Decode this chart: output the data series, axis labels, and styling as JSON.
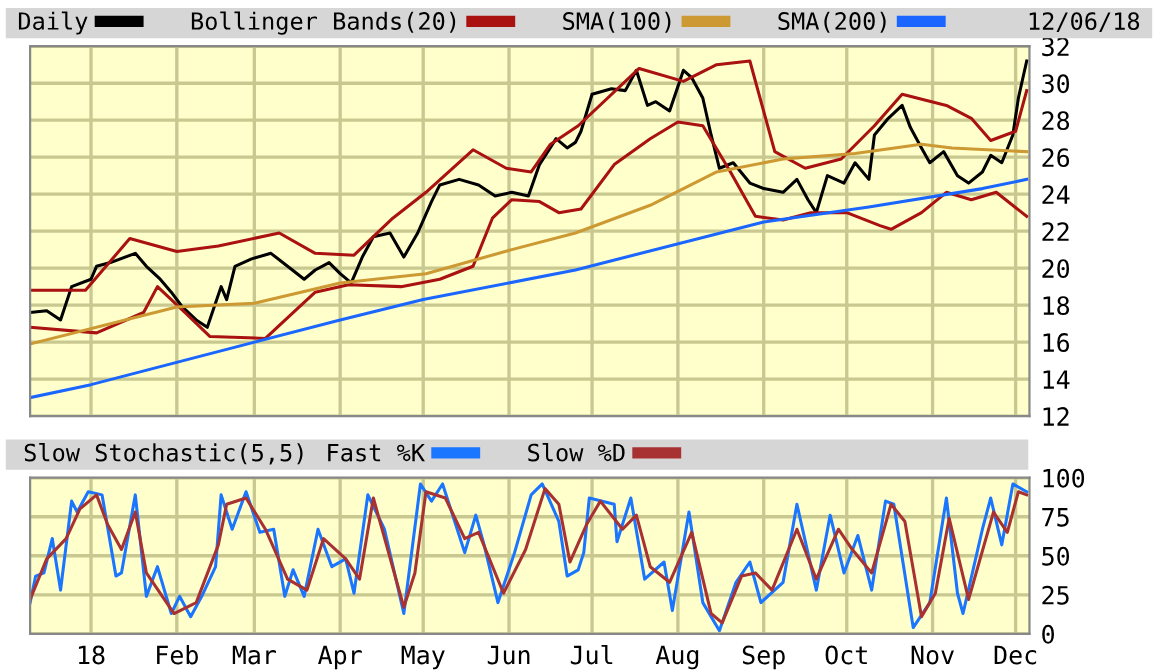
{
  "chart_data": [
    {
      "type": "line",
      "legend": "top left",
      "grid": true,
      "tick_labels": "y",
      "annotations": [
        "12/06/18"
      ],
      "xlim": [
        "2017-12-10",
        "2018-12-06"
      ],
      "ylim": [
        12,
        32
      ],
      "yticks": [
        12,
        14,
        16,
        18,
        20,
        22,
        24,
        26,
        28,
        30,
        32
      ],
      "xticks": [
        {
          "value": "2018-01-01",
          "label": null
        },
        {
          "value": "2018-02-01",
          "label": null
        },
        {
          "value": "2018-03-01",
          "label": null
        },
        {
          "value": "2018-04-01",
          "label": null
        },
        {
          "value": "2018-05-01",
          "label": null
        },
        {
          "value": "2018-06-01",
          "label": null
        },
        {
          "value": "2018-07-01",
          "label": null
        },
        {
          "value": "2018-08-01",
          "label": null
        },
        {
          "value": "2018-09-01",
          "label": null
        },
        {
          "value": "2018-10-01",
          "label": null
        },
        {
          "value": "2018-11-01",
          "label": null
        },
        {
          "value": "2018-12-01",
          "label": null
        }
      ],
      "series": [
        {
          "name": "Daily",
          "color": "#000000",
          "x": [
            "2017-12-10",
            "2017-12-16",
            "2017-12-21",
            "2017-12-25",
            "2018-01-01",
            "2018-01-03",
            "2018-01-08",
            "2018-01-17",
            "2018-01-21",
            "2018-01-26",
            "2018-01-30",
            "2018-02-03",
            "2018-02-08",
            "2018-02-12",
            "2018-02-17",
            "2018-02-19",
            "2018-02-22",
            "2018-02-28",
            "2018-03-07",
            "2018-03-13",
            "2018-03-19",
            "2018-03-23",
            "2018-03-28",
            "2018-04-01",
            "2018-04-05",
            "2018-04-09",
            "2018-04-13",
            "2018-04-19",
            "2018-04-24",
            "2018-04-29",
            "2018-05-04",
            "2018-05-07",
            "2018-05-14",
            "2018-05-21",
            "2018-05-27",
            "2018-06-02",
            "2018-06-08",
            "2018-06-12",
            "2018-06-18",
            "2018-06-22",
            "2018-06-25",
            "2018-06-27",
            "2018-07-01",
            "2018-07-08",
            "2018-07-13",
            "2018-07-17",
            "2018-07-21",
            "2018-07-24",
            "2018-07-29",
            "2018-08-03",
            "2018-08-06",
            "2018-08-10",
            "2018-08-13",
            "2018-08-16",
            "2018-08-21",
            "2018-08-27",
            "2018-09-01",
            "2018-09-08",
            "2018-09-13",
            "2018-09-17",
            "2018-09-20",
            "2018-09-24",
            "2018-09-30",
            "2018-10-04",
            "2018-10-09",
            "2018-10-11",
            "2018-10-16",
            "2018-10-21",
            "2018-10-24",
            "2018-10-28",
            "2018-10-31",
            "2018-11-05",
            "2018-11-10",
            "2018-11-14",
            "2018-11-19",
            "2018-11-22",
            "2018-11-26",
            "2018-11-30",
            "2018-12-02",
            "2018-12-05"
          ],
          "values": [
            17.6,
            17.7,
            17.2,
            19.0,
            19.4,
            20.1,
            20.3,
            20.8,
            20.1,
            19.4,
            18.7,
            17.9,
            17.2,
            16.8,
            19.0,
            18.3,
            20.1,
            20.5,
            20.8,
            20.1,
            19.4,
            19.9,
            20.3,
            19.7,
            19.2,
            20.6,
            21.7,
            21.9,
            20.6,
            21.9,
            23.6,
            24.5,
            24.8,
            24.5,
            23.9,
            24.1,
            23.9,
            25.6,
            27.0,
            26.5,
            26.8,
            27.4,
            29.4,
            29.7,
            29.6,
            30.7,
            28.8,
            29.0,
            28.5,
            30.7,
            30.3,
            29.2,
            27.2,
            25.4,
            25.7,
            24.6,
            24.3,
            24.1,
            24.8,
            23.7,
            23.0,
            25.0,
            24.6,
            25.7,
            24.8,
            27.2,
            28.1,
            28.8,
            27.6,
            26.5,
            25.7,
            26.3,
            25.0,
            24.6,
            25.2,
            26.1,
            25.7,
            27.2,
            29.2,
            31.2
          ]
        },
        {
          "name": "Bollinger Bands(20)",
          "color": "#aa1111",
          "x": [
            "2017-12-10",
            "2017-12-30",
            "2018-01-15",
            "2018-02-01",
            "2018-02-16",
            "2018-03-10",
            "2018-03-23",
            "2018-04-06",
            "2018-04-20",
            "2018-05-02",
            "2018-05-19",
            "2018-05-31",
            "2018-06-09",
            "2018-06-16",
            "2018-06-26",
            "2018-07-18",
            "2018-08-03",
            "2018-08-15",
            "2018-08-27",
            "2018-09-05",
            "2018-09-16",
            "2018-09-29",
            "2018-10-11",
            "2018-10-21",
            "2018-11-06",
            "2018-11-15",
            "2018-11-22",
            "2018-12-01",
            "2018-12-05"
          ],
          "values": [
            18.8,
            18.8,
            21.6,
            20.9,
            21.2,
            21.9,
            20.8,
            20.7,
            22.7,
            24.1,
            26.4,
            25.4,
            25.2,
            26.7,
            27.7,
            30.8,
            30.1,
            31.0,
            31.2,
            26.3,
            25.4,
            25.9,
            27.7,
            29.4,
            28.8,
            28.1,
            26.9,
            27.4,
            29.6
          ]
        },
        {
          "color": "#aa1111",
          "x": [
            "2017-12-10",
            "2018-01-03",
            "2018-01-20",
            "2018-01-25",
            "2018-02-04",
            "2018-02-13",
            "2018-03-05",
            "2018-03-15",
            "2018-03-23",
            "2018-04-04",
            "2018-04-23",
            "2018-05-07",
            "2018-05-19",
            "2018-05-26",
            "2018-06-02",
            "2018-06-12",
            "2018-06-19",
            "2018-06-27",
            "2018-07-09",
            "2018-07-22",
            "2018-08-01",
            "2018-08-10",
            "2018-08-20",
            "2018-08-29",
            "2018-09-08",
            "2018-09-18",
            "2018-10-01",
            "2018-10-13",
            "2018-10-17",
            "2018-10-28",
            "2018-11-06",
            "2018-11-15",
            "2018-11-24",
            "2018-12-05"
          ],
          "values": [
            16.8,
            16.5,
            17.6,
            19.0,
            17.6,
            16.3,
            16.2,
            17.6,
            18.7,
            19.1,
            19.0,
            19.4,
            20.1,
            22.7,
            23.7,
            23.6,
            23.0,
            23.2,
            25.6,
            27.0,
            27.9,
            27.7,
            25.2,
            22.8,
            22.6,
            23.0,
            23.0,
            22.3,
            22.1,
            23.0,
            24.1,
            23.7,
            24.1,
            22.8
          ]
        },
        {
          "name": "SMA(100)",
          "color": "#cc9933",
          "x": [
            "2017-12-10",
            "2018-02-01",
            "2018-03-01",
            "2018-04-01",
            "2018-05-02",
            "2018-06-02",
            "2018-06-25",
            "2018-07-22",
            "2018-08-15",
            "2018-09-08",
            "2018-10-04",
            "2018-10-28",
            "2018-11-08",
            "2018-12-05"
          ],
          "values": [
            15.9,
            17.9,
            18.1,
            19.2,
            19.7,
            21.0,
            21.9,
            23.4,
            25.2,
            25.9,
            26.2,
            26.7,
            26.5,
            26.3
          ]
        },
        {
          "name": "SMA(200)",
          "color": "#1a66ff",
          "x": [
            "2017-12-10",
            "2018-01-01",
            "2018-04-01",
            "2018-05-01",
            "2018-06-25",
            "2018-09-01",
            "2018-10-09",
            "2018-11-19",
            "2018-12-05"
          ],
          "values": [
            13.0,
            13.7,
            17.2,
            18.3,
            19.9,
            22.5,
            23.3,
            24.3,
            24.8
          ]
        }
      ]
    },
    {
      "type": "line",
      "title": "Slow Stochastic(5,5)",
      "legend": "top left",
      "grid": true,
      "xlim": [
        "2017-12-10",
        "2018-12-06"
      ],
      "ylim": [
        0,
        100
      ],
      "yticks": [
        0,
        25,
        50,
        75,
        100
      ],
      "xticks": [
        {
          "value": "2018-01-01",
          "label": "18"
        },
        {
          "value": "2018-02-01",
          "label": "Feb"
        },
        {
          "value": "2018-03-01",
          "label": "Mar"
        },
        {
          "value": "2018-04-01",
          "label": "Apr"
        },
        {
          "value": "2018-05-01",
          "label": "May"
        },
        {
          "value": "2018-06-01",
          "label": "Jun"
        },
        {
          "value": "2018-07-01",
          "label": "Jul"
        },
        {
          "value": "2018-08-01",
          "label": "Aug"
        },
        {
          "value": "2018-09-01",
          "label": "Sep"
        },
        {
          "value": "2018-10-01",
          "label": "Oct"
        },
        {
          "value": "2018-11-01",
          "label": "Nov"
        },
        {
          "value": "2018-12-01",
          "label": "Dec"
        }
      ],
      "series": [
        {
          "name": "Fast %K",
          "color": "#1a75ff",
          "x": [
            "2017-12-10",
            "2017-12-12",
            "2017-12-15",
            "2017-12-18",
            "2017-12-21",
            "2017-12-25",
            "2017-12-27",
            "2017-12-31",
            "2018-01-05",
            "2018-01-10",
            "2018-01-12",
            "2018-01-17",
            "2018-01-21",
            "2018-01-25",
            "2018-01-30",
            "2018-02-02",
            "2018-02-06",
            "2018-02-10",
            "2018-02-15",
            "2018-02-17",
            "2018-02-21",
            "2018-02-26",
            "2018-03-03",
            "2018-03-08",
            "2018-03-12",
            "2018-03-15",
            "2018-03-19",
            "2018-03-24",
            "2018-03-29",
            "2018-04-03",
            "2018-04-06",
            "2018-04-11",
            "2018-04-17",
            "2018-04-24",
            "2018-04-30",
            "2018-05-04",
            "2018-05-08",
            "2018-05-16",
            "2018-05-20",
            "2018-05-23",
            "2018-05-28",
            "2018-06-03",
            "2018-06-09",
            "2018-06-13",
            "2018-06-19",
            "2018-06-22",
            "2018-06-26",
            "2018-06-28",
            "2018-06-30",
            "2018-07-09",
            "2018-07-10",
            "2018-07-15",
            "2018-07-20",
            "2018-07-27",
            "2018-07-30",
            "2018-08-05",
            "2018-08-10",
            "2018-08-16",
            "2018-08-22",
            "2018-08-27",
            "2018-08-31",
            "2018-09-08",
            "2018-09-13",
            "2018-09-20",
            "2018-09-25",
            "2018-09-30",
            "2018-10-05",
            "2018-10-10",
            "2018-10-15",
            "2018-10-18",
            "2018-10-25",
            "2018-10-31",
            "2018-11-06",
            "2018-11-10",
            "2018-11-12",
            "2018-11-19",
            "2018-11-22",
            "2018-11-26",
            "2018-11-30",
            "2018-12-05"
          ],
          "values": [
            20,
            37,
            39,
            61,
            28,
            85,
            78,
            91,
            89,
            37,
            39,
            89,
            24,
            43,
            13,
            24,
            11,
            24,
            43,
            89,
            67,
            91,
            65,
            67,
            24,
            41,
            24,
            67,
            43,
            48,
            26,
            89,
            67,
            13,
            96,
            85,
            96,
            52,
            76,
            57,
            20,
            52,
            89,
            96,
            72,
            37,
            41,
            52,
            87,
            83,
            59,
            87,
            35,
            46,
            15,
            78,
            20,
            2,
            33,
            46,
            20,
            33,
            83,
            28,
            76,
            39,
            63,
            28,
            85,
            83,
            4,
            20,
            87,
            26,
            13,
            67,
            87,
            57,
            96,
            91
          ]
        },
        {
          "name": "Slow %D",
          "color": "#a83232",
          "x": [
            "2017-12-10",
            "2017-12-16",
            "2017-12-23",
            "2017-12-28",
            "2018-01-03",
            "2018-01-07",
            "2018-01-12",
            "2018-01-17",
            "2018-01-21",
            "2018-01-31",
            "2018-02-08",
            "2018-02-16",
            "2018-02-19",
            "2018-02-26",
            "2018-03-05",
            "2018-03-13",
            "2018-03-20",
            "2018-03-26",
            "2018-04-03",
            "2018-04-08",
            "2018-04-13",
            "2018-04-24",
            "2018-04-28",
            "2018-05-02",
            "2018-05-09",
            "2018-05-16",
            "2018-05-21",
            "2018-05-30",
            "2018-06-07",
            "2018-06-14",
            "2018-06-19",
            "2018-06-23",
            "2018-06-29",
            "2018-07-04",
            "2018-07-12",
            "2018-07-17",
            "2018-07-22",
            "2018-07-29",
            "2018-08-06",
            "2018-08-13",
            "2018-08-17",
            "2018-08-24",
            "2018-08-29",
            "2018-09-04",
            "2018-09-13",
            "2018-09-20",
            "2018-09-28",
            "2018-10-03",
            "2018-10-10",
            "2018-10-17",
            "2018-10-22",
            "2018-10-28",
            "2018-11-02",
            "2018-11-07",
            "2018-11-14",
            "2018-11-23",
            "2018-11-28",
            "2018-12-02",
            "2018-12-05"
          ],
          "values": [
            22,
            48,
            61,
            80,
            89,
            70,
            54,
            78,
            39,
            13,
            20,
            57,
            83,
            87,
            67,
            35,
            28,
            61,
            48,
            35,
            87,
            17,
            39,
            91,
            87,
            61,
            65,
            26,
            54,
            93,
            83,
            46,
            70,
            85,
            67,
            76,
            43,
            33,
            65,
            13,
            7,
            37,
            39,
            28,
            67,
            35,
            67,
            54,
            39,
            83,
            72,
            11,
            26,
            74,
            22,
            78,
            65,
            91,
            89
          ]
        }
      ]
    }
  ]
}
